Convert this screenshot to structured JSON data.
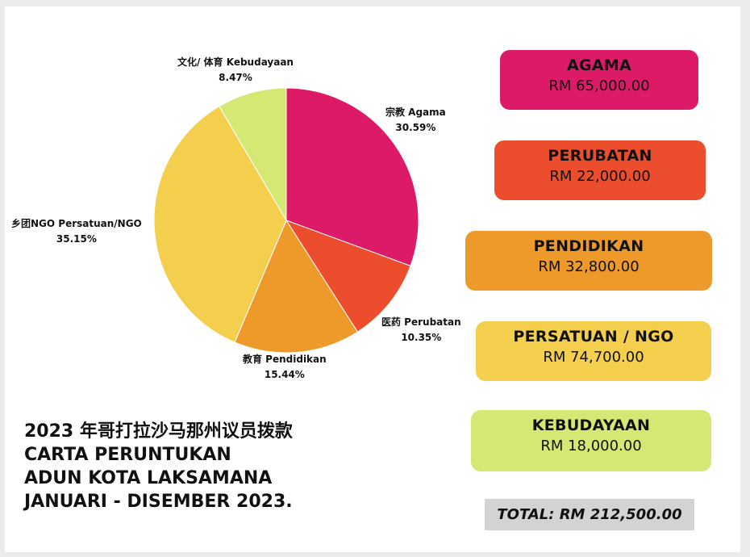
{
  "chart_data": {
    "type": "pie",
    "title": "",
    "slices": [
      {
        "label": "宗教 Agama",
        "percent_label": "30.59%",
        "value": 30.59,
        "color": "#dc1a67"
      },
      {
        "label": "医药 Perubatan",
        "percent_label": "10.35%",
        "value": 10.35,
        "color": "#ec4e2d"
      },
      {
        "label": "教育 Pendidikan",
        "percent_label": "15.44%",
        "value": 15.44,
        "color": "#ee9a2b"
      },
      {
        "label": "乡团NGO Persatuan/NGO",
        "percent_label": "35.15%",
        "value": 35.15,
        "color": "#f4cf4e"
      },
      {
        "label": "文化/ 体育 Kebudayaan",
        "percent_label": "8.47%",
        "value": 8.47,
        "color": "#d5e874"
      }
    ]
  },
  "allocations": [
    {
      "name": "AGAMA",
      "amount": "RM 65,000.00",
      "color": "#dc1a67"
    },
    {
      "name": "PERUBATAN",
      "amount": "RM 22,000.00",
      "color": "#ec4e2d"
    },
    {
      "name": "PENDIDIKAN",
      "amount": "RM 32,800.00",
      "color": "#ee9a2b"
    },
    {
      "name": "PERSATUAN / NGO",
      "amount": "RM 74,700.00",
      "color": "#f4cf4e"
    },
    {
      "name": "KEBUDAYAAN",
      "amount": "RM 18,000.00",
      "color": "#d5e874"
    }
  ],
  "caption": {
    "line1": "2023 年哥打拉沙马那州议员拨款",
    "line2": "CARTA PERUNTUKAN",
    "line3": "ADUN KOTA LAKSAMANA",
    "line4": "JANUARI - DISEMBER 2023."
  },
  "total": "TOTAL: RM 212,500.00"
}
